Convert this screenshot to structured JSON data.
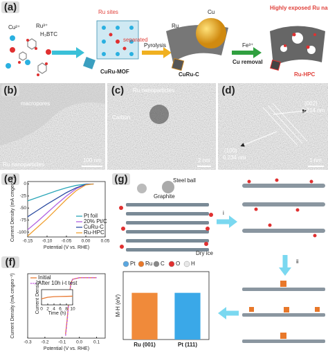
{
  "panels": {
    "a": {
      "label": "(a)",
      "cu_ion": "Cu²⁺",
      "ru_ion": "Ru³⁺",
      "linker": "H₃BTC",
      "ru_sites": "Ru sites",
      "separated": "separated",
      "mof": "CuRu-MOF",
      "pyrolysis": "Pyrolysis",
      "cu": "Cu",
      "ru": "Ru",
      "curu_c": "CuRu-C",
      "fe": "Fe³⁺",
      "cu_removal": "Cu removal",
      "exposed": "Highly exposed Ru nanoparticles",
      "ru_hpc": "Ru-HPC"
    },
    "b": {
      "label": "(b)",
      "macropores": "macropores",
      "nanoparticles": "Ru nanoparticles",
      "scale": "100 nm"
    },
    "c": {
      "label": "(c)",
      "nanoparticles": "Ru nanoparticles",
      "carbon": "Carbon",
      "scale": "2 nm"
    },
    "d": {
      "label": "(d)",
      "plane1": "(002)",
      "d1": "0.214 nm",
      "plane2": "(100)",
      "d2": "0.234 nm",
      "scale": "1 nm"
    },
    "e": {
      "label": "(e)"
    },
    "f": {
      "label": "(f)"
    },
    "g": {
      "label": "(g)",
      "steel_ball": "Steel ball",
      "graphite": "Graphite",
      "dry_ice": "Dry ice",
      "step1": "i",
      "step2": "ii",
      "atoms": [
        {
          "name": "Pt",
          "color": "#5aa7e0"
        },
        {
          "name": "Ru",
          "color": "#e8782a"
        },
        {
          "name": "C",
          "color": "#888888"
        },
        {
          "name": "O",
          "color": "#e03030"
        },
        {
          "name": "H",
          "color": "#e8e8e8"
        }
      ]
    }
  },
  "chart_data": [
    {
      "type": "line",
      "xlabel": "Potential (V vs. RHE)",
      "ylabel": "Current Density (mA cmgeo⁻²)",
      "x": [
        -0.15,
        -0.125,
        -0.1,
        -0.075,
        -0.05,
        -0.025,
        0,
        0.02
      ],
      "xlim": [
        -0.15,
        0.05
      ],
      "xticks": [
        {
          "value": -0.15,
          "label": "-0.15"
        },
        {
          "value": -0.1,
          "label": "-0.10"
        },
        {
          "value": -0.05,
          "label": "-0.05"
        },
        {
          "value": 0,
          "label": "0.00"
        },
        {
          "value": 0.05,
          "label": "0.05"
        }
      ],
      "ylim": [
        -110,
        5
      ],
      "yticks": [
        0,
        -25,
        -50,
        -75,
        -100
      ],
      "legend": "lower right",
      "series": [
        {
          "name": "Pt foil",
          "color": "#2aa6b8",
          "values": [
            -35,
            -28,
            -21,
            -14,
            -8,
            -3,
            -0.5,
            0
          ]
        },
        {
          "name": "20% Pt/C",
          "color": "#b060e0",
          "values": [
            -95,
            -78,
            -60,
            -42,
            -25,
            -10,
            -1,
            0
          ]
        },
        {
          "name": "CuRu-C",
          "color": "#2a4aa0",
          "values": [
            -68,
            -55,
            -42,
            -30,
            -18,
            -8,
            -1,
            0
          ]
        },
        {
          "name": "Ru-HPC",
          "color": "#f0a030",
          "values": [
            -108,
            -90,
            -72,
            -52,
            -32,
            -14,
            -2,
            0
          ]
        }
      ]
    },
    {
      "type": "line",
      "xlabel": "Potential (V vs. RHE)",
      "ylabel": "Current Density (mA cmgeo⁻²)",
      "x": [
        -0.08,
        -0.07,
        -0.06,
        -0.05,
        -0.04,
        0,
        0.05,
        0.1
      ],
      "xlim": [
        -0.3,
        0.15
      ],
      "xticks": [
        -0.3,
        -0.2,
        -0.1,
        {
          "value": 0,
          "label": "0.0"
        },
        0.1
      ],
      "ylim": [
        -75,
        5
      ],
      "yticks": [],
      "legend": "upper left",
      "series": [
        {
          "name": "Initial",
          "color": "#e87830",
          "values": [
            -70,
            -50,
            -25,
            -8,
            -2,
            0,
            0,
            0
          ]
        },
        {
          "name": "After 10h i-t test",
          "color": "#c050e0",
          "dashed": true,
          "values": [
            -72,
            -52,
            -27,
            -9,
            -2,
            0,
            0,
            0
          ]
        }
      ]
    },
    {
      "type": "line",
      "xlabel": "Time (h)",
      "ylabel": "Current Density",
      "x": [
        0,
        2,
        4,
        6,
        8,
        10
      ],
      "xlim": [
        0,
        10
      ],
      "xticks": [
        0,
        2,
        4,
        6,
        8,
        10
      ],
      "ylim": [
        -10,
        0
      ],
      "yticks": [],
      "series": [
        {
          "color": "#e87830",
          "values": [
            -6,
            -5,
            -4.6,
            -4.5,
            -4.4,
            -4.3
          ]
        }
      ]
    },
    {
      "type": "bar",
      "ylabel": "M-H (eV)",
      "categories": [
        "Ru (001)",
        "Pt (111)"
      ],
      "values": [
        0.55,
        0.55
      ],
      "colors": [
        "#f08a3a",
        "#3aa8e8"
      ],
      "ylim": [
        0,
        0.8
      ]
    }
  ]
}
